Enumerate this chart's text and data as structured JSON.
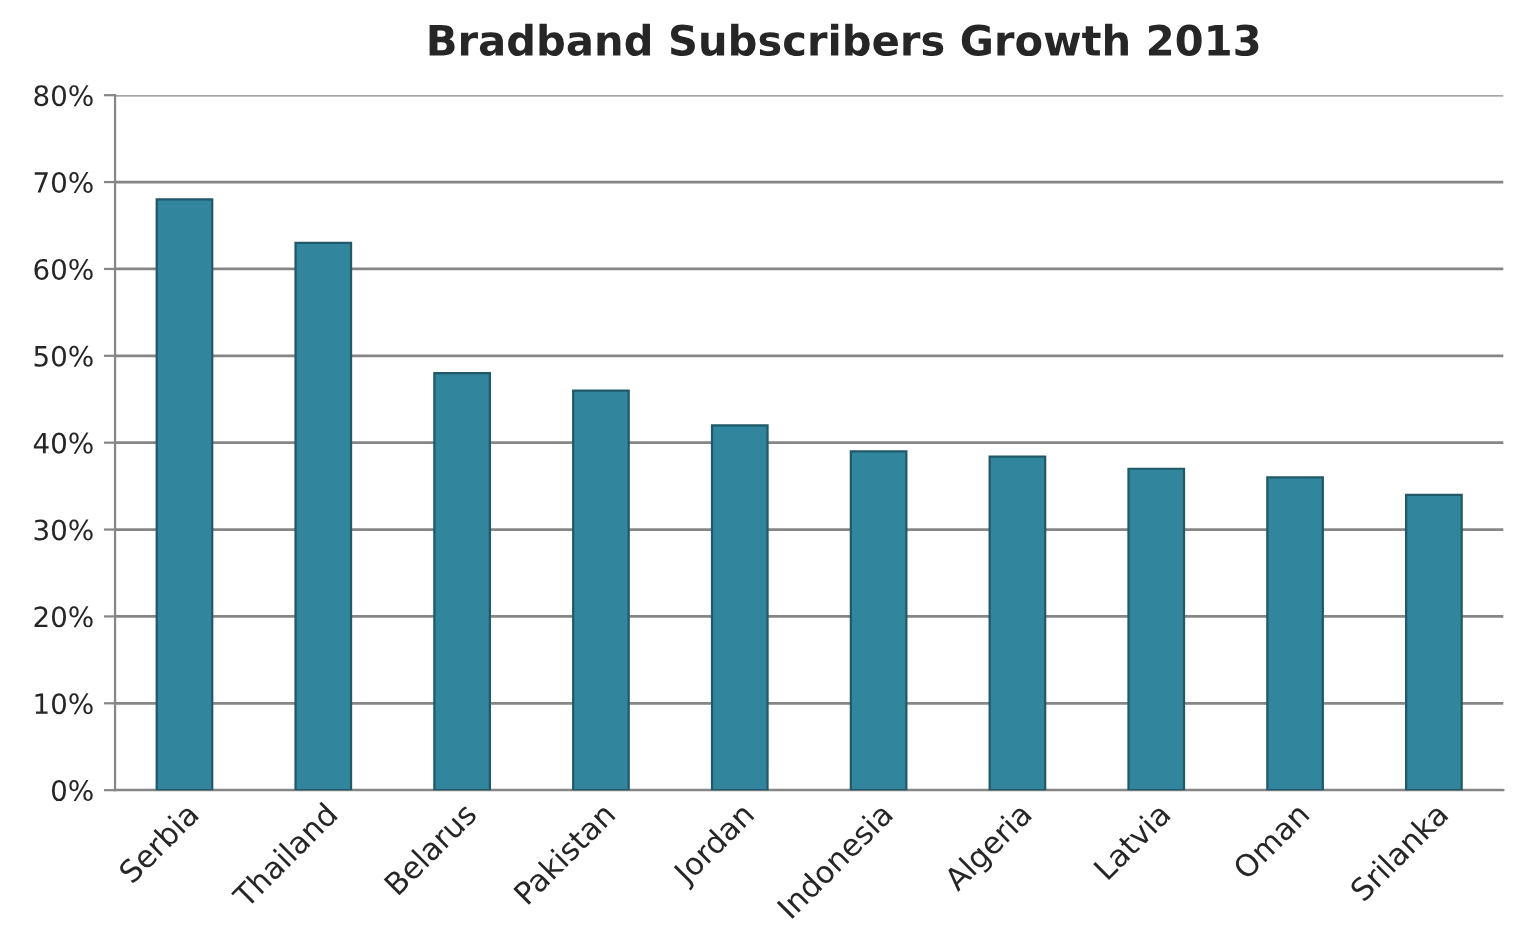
{
  "chart_data": {
    "type": "bar",
    "title": "Bradband Subscribers Growth 2013",
    "categories": [
      "Serbia",
      "Thailand",
      "Belarus",
      "Pakistan",
      "Jordan",
      "Indonesia",
      "Algeria",
      "Latvia",
      "Oman",
      "Srilanka"
    ],
    "values": [
      68,
      63,
      48,
      46,
      42,
      39,
      38.4,
      37,
      36,
      34
    ],
    "color": "#31859c",
    "ylim": [
      0,
      80
    ],
    "yticks": [
      {
        "value": 0,
        "label": "0%"
      },
      {
        "value": 10,
        "label": "10%"
      },
      {
        "value": 20,
        "label": "20%"
      },
      {
        "value": 30,
        "label": "30%"
      },
      {
        "value": 40,
        "label": "40%"
      },
      {
        "value": 50,
        "label": "50%"
      },
      {
        "value": 60,
        "label": "60%"
      },
      {
        "value": 70,
        "label": "70%"
      },
      {
        "value": 80,
        "label": "80%"
      }
    ],
    "grid": "y",
    "legend": false
  }
}
